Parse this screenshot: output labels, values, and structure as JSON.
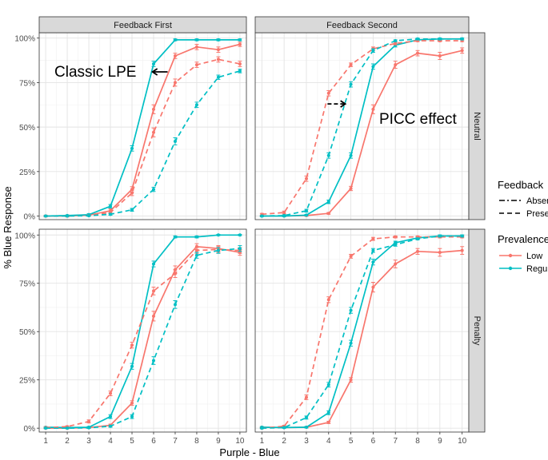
{
  "chart_data": {
    "type": "line",
    "x_label": "Purple - Blue",
    "y_label": "% Blue Response",
    "x_ticks": [
      "1",
      "2",
      "3",
      "4",
      "5",
      "6",
      "7",
      "8",
      "9",
      "10"
    ],
    "y_ticks": [
      "0%",
      "25%",
      "50%",
      "75%",
      "100%"
    ],
    "xlim": [
      0.7,
      10.3
    ],
    "ylim": [
      -0.02,
      1.03
    ],
    "col_facets": [
      "Feedback First",
      "Feedback Second"
    ],
    "row_facets": [
      "Neutral",
      "Penalty"
    ],
    "legend": {
      "feedback_title": "Feedback",
      "feedback_items": [
        {
          "label": "Absent",
          "dash": "dashdot"
        },
        {
          "label": "Present",
          "dash": "dashed"
        }
      ],
      "prevalence_title": "Prevalence",
      "prevalence_items": [
        {
          "label": "Low",
          "color": "#F8766D"
        },
        {
          "label": "Regular",
          "color": "#00BFC4"
        }
      ]
    },
    "annotations": [
      {
        "panel": 0,
        "text": "Classic LPE",
        "arrow": {
          "from": [
            6.65,
            0.81
          ],
          "to": [
            5.95,
            0.81
          ],
          "style": "solid"
        }
      },
      {
        "panel": 1,
        "text": "PICC effect",
        "arrow": {
          "from": [
            3.95,
            0.63
          ],
          "to": [
            4.75,
            0.63
          ],
          "style": "dashed"
        }
      }
    ],
    "panels": [
      {
        "col": "Feedback First",
        "row": "Neutral",
        "series": [
          {
            "name": "Low - Absent",
            "prevalence": "Low",
            "feedback": "Absent",
            "color": "#F8766D",
            "dash": "solid",
            "x": [
              1,
              2,
              3,
              4,
              5,
              6,
              7,
              8,
              9,
              10
            ],
            "values": [
              0.0,
              0.0,
              0.005,
              0.03,
              0.15,
              0.6,
              0.9,
              0.95,
              0.935,
              0.965
            ],
            "errors": [
              0.005,
              0.005,
              0.005,
              0.01,
              0.015,
              0.025,
              0.015,
              0.015,
              0.015,
              0.012
            ]
          },
          {
            "name": "Regular - Absent",
            "prevalence": "Regular",
            "feedback": "Absent",
            "color": "#00BFC4",
            "dash": "solid",
            "x": [
              1,
              2,
              3,
              4,
              5,
              6,
              7,
              8,
              9,
              10
            ],
            "values": [
              0.0,
              0.003,
              0.008,
              0.055,
              0.38,
              0.855,
              0.99,
              0.99,
              0.99,
              0.99
            ],
            "errors": [
              0.003,
              0.003,
              0.005,
              0.01,
              0.015,
              0.015,
              0.005,
              0.005,
              0.005,
              0.005
            ]
          },
          {
            "name": "Low - Present",
            "prevalence": "Low",
            "feedback": "Present",
            "color": "#F8766D",
            "dash": "dashed",
            "x": [
              1,
              2,
              3,
              4,
              5,
              6,
              7,
              8,
              9,
              10
            ],
            "values": [
              0.0,
              0.0,
              0.003,
              0.02,
              0.13,
              0.47,
              0.75,
              0.85,
              0.88,
              0.855
            ],
            "errors": [
              0.003,
              0.003,
              0.004,
              0.008,
              0.015,
              0.025,
              0.02,
              0.015,
              0.015,
              0.015
            ]
          },
          {
            "name": "Regular - Present",
            "prevalence": "Regular",
            "feedback": "Present",
            "color": "#00BFC4",
            "dash": "dashed",
            "x": [
              1,
              2,
              3,
              4,
              5,
              6,
              7,
              8,
              9,
              10
            ],
            "values": [
              0.0,
              0.0,
              0.002,
              0.01,
              0.035,
              0.15,
              0.42,
              0.625,
              0.78,
              0.815
            ],
            "errors": [
              0.002,
              0.002,
              0.003,
              0.005,
              0.008,
              0.012,
              0.02,
              0.015,
              0.012,
              0.01
            ]
          }
        ]
      },
      {
        "col": "Feedback Second",
        "row": "Neutral",
        "series": [
          {
            "name": "Low - Absent",
            "prevalence": "Low",
            "feedback": "Absent",
            "color": "#F8766D",
            "dash": "solid",
            "x": [
              1,
              2,
              3,
              4,
              5,
              6,
              7,
              8,
              9,
              10
            ],
            "values": [
              0.0,
              0.0,
              0.003,
              0.015,
              0.155,
              0.6,
              0.85,
              0.915,
              0.9,
              0.93
            ],
            "errors": [
              0.003,
              0.003,
              0.004,
              0.005,
              0.012,
              0.025,
              0.02,
              0.015,
              0.02,
              0.015
            ]
          },
          {
            "name": "Regular - Absent",
            "prevalence": "Regular",
            "feedback": "Absent",
            "color": "#00BFC4",
            "dash": "solid",
            "x": [
              1,
              2,
              3,
              4,
              5,
              6,
              7,
              8,
              9,
              10
            ],
            "values": [
              0.0,
              0.0,
              0.005,
              0.08,
              0.34,
              0.84,
              0.96,
              0.99,
              0.995,
              0.995
            ],
            "errors": [
              0.003,
              0.003,
              0.004,
              0.01,
              0.015,
              0.015,
              0.01,
              0.005,
              0.005,
              0.005
            ]
          },
          {
            "name": "Low - Present",
            "prevalence": "Low",
            "feedback": "Present",
            "color": "#F8766D",
            "dash": "dashed",
            "x": [
              1,
              2,
              3,
              4,
              5,
              6,
              7,
              8,
              9,
              10
            ],
            "values": [
              0.01,
              0.02,
              0.21,
              0.69,
              0.85,
              0.94,
              0.97,
              0.985,
              0.985,
              0.985
            ],
            "errors": [
              0.005,
              0.008,
              0.015,
              0.015,
              0.01,
              0.01,
              0.008,
              0.005,
              0.005,
              0.005
            ]
          },
          {
            "name": "Regular - Present",
            "prevalence": "Regular",
            "feedback": "Present",
            "color": "#00BFC4",
            "dash": "dashed",
            "x": [
              1,
              2,
              3,
              4,
              5,
              6,
              7,
              8,
              9,
              10
            ],
            "values": [
              0.0,
              0.003,
              0.03,
              0.34,
              0.74,
              0.93,
              0.985,
              0.995,
              0.995,
              0.995
            ],
            "errors": [
              0.003,
              0.003,
              0.008,
              0.015,
              0.015,
              0.01,
              0.005,
              0.005,
              0.005,
              0.005
            ]
          }
        ]
      },
      {
        "col": "Feedback First",
        "row": "Penalty",
        "series": [
          {
            "name": "Low - Absent",
            "prevalence": "Low",
            "feedback": "Absent",
            "color": "#F8766D",
            "dash": "solid",
            "x": [
              1,
              2,
              3,
              4,
              5,
              6,
              7,
              8,
              9,
              10
            ],
            "values": [
              0.0,
              0.0,
              0.003,
              0.015,
              0.13,
              0.58,
              0.82,
              0.94,
              0.93,
              0.91
            ],
            "errors": [
              0.003,
              0.003,
              0.004,
              0.006,
              0.012,
              0.025,
              0.02,
              0.015,
              0.015,
              0.015
            ]
          },
          {
            "name": "Regular - Absent",
            "prevalence": "Regular",
            "feedback": "Absent",
            "color": "#00BFC4",
            "dash": "solid",
            "x": [
              1,
              2,
              3,
              4,
              5,
              6,
              7,
              8,
              9,
              10
            ],
            "values": [
              0.005,
              0.003,
              0.005,
              0.06,
              0.32,
              0.85,
              0.99,
              0.99,
              1.0,
              1.0
            ],
            "errors": [
              0.003,
              0.003,
              0.004,
              0.01,
              0.015,
              0.015,
              0.005,
              0.005,
              0.003,
              0.003
            ]
          },
          {
            "name": "Low - Present",
            "prevalence": "Low",
            "feedback": "Present",
            "color": "#F8766D",
            "dash": "dashed",
            "x": [
              1,
              2,
              3,
              4,
              5,
              6,
              7,
              8,
              9,
              10
            ],
            "values": [
              0.003,
              0.008,
              0.035,
              0.18,
              0.43,
              0.71,
              0.8,
              0.92,
              0.925,
              0.92
            ],
            "errors": [
              0.003,
              0.004,
              0.008,
              0.012,
              0.015,
              0.02,
              0.02,
              0.015,
              0.015,
              0.015
            ]
          },
          {
            "name": "Regular - Present",
            "prevalence": "Regular",
            "feedback": "Present",
            "color": "#00BFC4",
            "dash": "dashed",
            "x": [
              1,
              2,
              3,
              4,
              5,
              6,
              7,
              8,
              9,
              10
            ],
            "values": [
              0.0,
              0.0,
              0.002,
              0.01,
              0.06,
              0.35,
              0.64,
              0.895,
              0.92,
              0.93
            ],
            "errors": [
              0.002,
              0.002,
              0.003,
              0.005,
              0.01,
              0.02,
              0.02,
              0.015,
              0.015,
              0.015
            ]
          }
        ]
      },
      {
        "col": "Feedback Second",
        "row": "Penalty",
        "series": [
          {
            "name": "Low - Absent",
            "prevalence": "Low",
            "feedback": "Absent",
            "color": "#F8766D",
            "dash": "solid",
            "x": [
              1,
              2,
              3,
              4,
              5,
              6,
              7,
              8,
              9,
              10
            ],
            "values": [
              0.005,
              0.003,
              0.005,
              0.03,
              0.25,
              0.73,
              0.85,
              0.915,
              0.91,
              0.92
            ],
            "errors": [
              0.003,
              0.003,
              0.004,
              0.006,
              0.012,
              0.025,
              0.02,
              0.015,
              0.02,
              0.02
            ]
          },
          {
            "name": "Regular - Absent",
            "prevalence": "Regular",
            "feedback": "Absent",
            "color": "#00BFC4",
            "dash": "solid",
            "x": [
              1,
              2,
              3,
              4,
              5,
              6,
              7,
              8,
              9,
              10
            ],
            "values": [
              0.005,
              0.003,
              0.005,
              0.08,
              0.44,
              0.86,
              0.96,
              0.985,
              0.995,
              0.995
            ],
            "errors": [
              0.003,
              0.003,
              0.004,
              0.01,
              0.015,
              0.015,
              0.008,
              0.005,
              0.005,
              0.005
            ]
          },
          {
            "name": "Low - Present",
            "prevalence": "Low",
            "feedback": "Present",
            "color": "#F8766D",
            "dash": "dashed",
            "x": [
              1,
              2,
              3,
              4,
              5,
              6,
              7,
              8,
              9,
              10
            ],
            "values": [
              0.0,
              0.01,
              0.16,
              0.665,
              0.89,
              0.98,
              0.99,
              0.99,
              0.99,
              0.99
            ],
            "errors": [
              0.003,
              0.005,
              0.012,
              0.015,
              0.01,
              0.008,
              0.005,
              0.005,
              0.005,
              0.005
            ]
          },
          {
            "name": "Regular - Present",
            "prevalence": "Regular",
            "feedback": "Present",
            "color": "#00BFC4",
            "dash": "dashed",
            "x": [
              1,
              2,
              3,
              4,
              5,
              6,
              7,
              8,
              9,
              10
            ],
            "values": [
              0.0,
              0.003,
              0.055,
              0.225,
              0.61,
              0.92,
              0.95,
              0.98,
              0.995,
              0.995
            ],
            "errors": [
              0.002,
              0.003,
              0.008,
              0.012,
              0.015,
              0.01,
              0.008,
              0.005,
              0.005,
              0.005
            ]
          }
        ]
      }
    ]
  }
}
